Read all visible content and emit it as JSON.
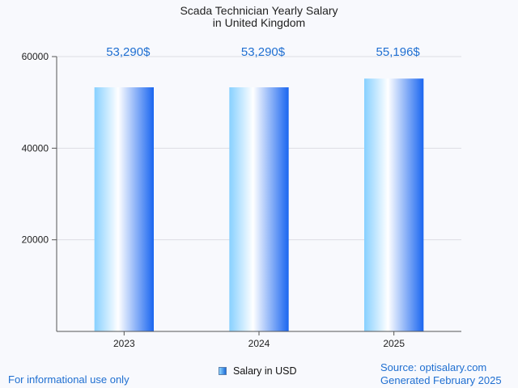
{
  "chart_data": {
    "type": "bar",
    "title_lines": [
      "Scada Technician Yearly Salary",
      "in United Kingdom"
    ],
    "categories": [
      "2023",
      "2024",
      "2025"
    ],
    "values": [
      53290,
      53290,
      55196
    ],
    "data_labels": [
      "53,290$",
      "53,290$",
      "55,196$"
    ],
    "ylim": [
      0,
      60000
    ],
    "yticks": [
      20000,
      40000,
      60000
    ],
    "grid": true,
    "legend": {
      "position": "bottom",
      "entries": [
        "Salary in USD"
      ]
    },
    "colors": {
      "bar_left": "#87d0ff",
      "bar_mid": "#ffffff",
      "bar_right": "#1a66f0",
      "label": "#1f6fd1"
    }
  },
  "footer": {
    "note": "For informational use only",
    "source": "Source: optisalary.com",
    "generated": "Generated February 2025"
  }
}
